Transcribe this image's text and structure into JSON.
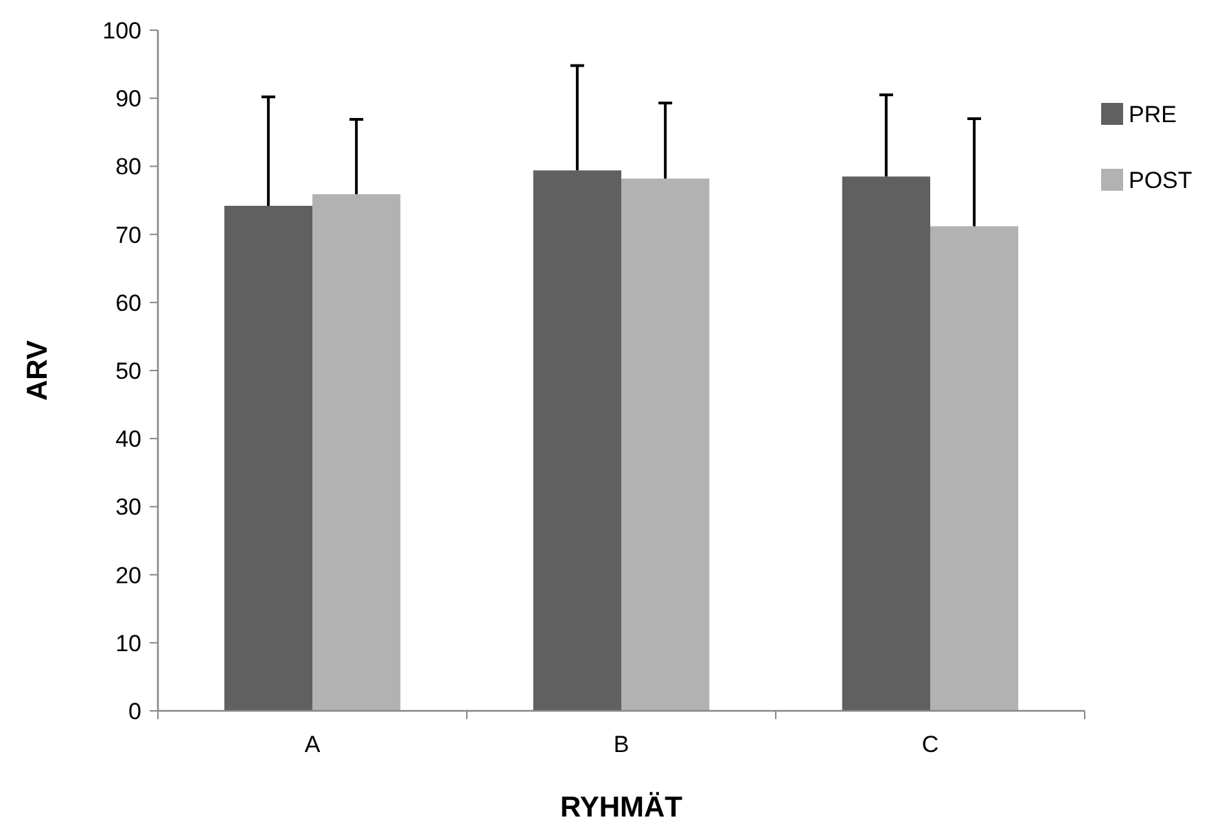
{
  "chart_data": {
    "type": "bar",
    "xlabel": "RYHMÄT",
    "ylabel": "ARV",
    "categories": [
      "A",
      "B",
      "C"
    ],
    "series": [
      {
        "name": "PRE",
        "color": "#606060",
        "values": [
          74.2,
          79.4,
          78.5
        ],
        "errors": [
          [
            74.2,
            90.2
          ],
          [
            79.4,
            94.8
          ],
          [
            78.5,
            90.5
          ]
        ]
      },
      {
        "name": "POST",
        "color": "#b2b2b2",
        "values": [
          75.9,
          78.2,
          71.2
        ],
        "errors": [
          [
            75.9,
            86.9
          ],
          [
            78.2,
            89.3
          ],
          [
            71.2,
            87.0
          ]
        ]
      }
    ],
    "ylim": [
      0,
      100
    ],
    "yticks": [
      0,
      10,
      20,
      30,
      40,
      50,
      60,
      70,
      80,
      90,
      100
    ],
    "grid": false,
    "legend": "right"
  }
}
